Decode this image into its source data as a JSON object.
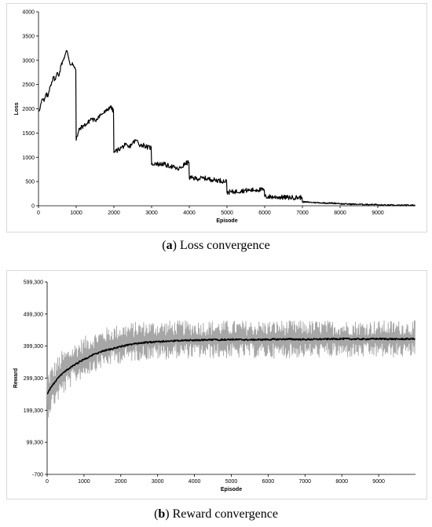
{
  "captions": {
    "a": {
      "letter": "a",
      "text": "Loss convergence"
    },
    "b": {
      "letter": "b",
      "text": "Reward convergence"
    }
  },
  "chart_data": [
    {
      "id": "loss",
      "type": "line",
      "title": "",
      "xlabel": "Episode",
      "ylabel": "Loss",
      "xlim": [
        0,
        10000
      ],
      "ylim": [
        0,
        4000
      ],
      "x_ticks": [
        "0",
        "1000",
        "2000",
        "3000",
        "4000",
        "5000",
        "6000",
        "7000",
        "8000",
        "9000"
      ],
      "y_ticks": [
        "4000",
        "3500",
        "3000",
        "2500",
        "2000",
        "1500",
        "1000",
        "500",
        "0"
      ],
      "grid": false,
      "series": [
        {
          "color": "#000000",
          "x": [
            0,
            50,
            100,
            150,
            200,
            250,
            300,
            350,
            400,
            450,
            500,
            550,
            600,
            650,
            700,
            750,
            800,
            850,
            900,
            950,
            990,
            1000,
            1050,
            1100,
            1200,
            1300,
            1400,
            1500,
            1600,
            1700,
            1800,
            1900,
            1990,
            2000,
            2100,
            2200,
            2300,
            2400,
            2500,
            2600,
            2700,
            2800,
            2900,
            2990,
            3000,
            3100,
            3200,
            3300,
            3400,
            3500,
            3600,
            3700,
            3800,
            3900,
            3990,
            4000,
            4200,
            4400,
            4600,
            4800,
            4990,
            5000,
            5200,
            5400,
            5600,
            5800,
            5990,
            6000,
            6300,
            6600,
            6990,
            7000,
            7500,
            7990,
            8000,
            8500,
            8990,
            9000,
            9500,
            9990
          ],
          "y": [
            1950,
            2050,
            2200,
            2150,
            2300,
            2250,
            2450,
            2550,
            2650,
            2600,
            2750,
            2700,
            2900,
            3000,
            3100,
            3200,
            3050,
            2900,
            2950,
            2850,
            2800,
            1350,
            1500,
            1600,
            1650,
            1700,
            1800,
            1750,
            1850,
            1900,
            1950,
            2050,
            1950,
            1100,
            1150,
            1200,
            1250,
            1200,
            1300,
            1350,
            1250,
            1250,
            1200,
            1200,
            850,
            880,
            850,
            870,
            830,
            820,
            790,
            750,
            800,
            870,
            900,
            580,
            560,
            570,
            540,
            520,
            500,
            280,
            290,
            310,
            320,
            330,
            330,
            190,
            180,
            170,
            170,
            80,
            60,
            50,
            40,
            30,
            25,
            15,
            10,
            10
          ]
        }
      ]
    },
    {
      "id": "reward",
      "type": "line",
      "title": "",
      "xlabel": "Episode",
      "ylabel": "Reward",
      "xlim": [
        0,
        10000
      ],
      "ylim": [
        -700,
        599300
      ],
      "x_ticks": [
        "0",
        "1000",
        "2000",
        "3000",
        "4000",
        "5000",
        "6000",
        "7000",
        "8000",
        "9000"
      ],
      "y_ticks": [
        "599,300",
        "499,300",
        "399,300",
        "299,300",
        "199,300",
        "99,300",
        "-700"
      ],
      "grid": false,
      "series": [
        {
          "color": "#a6a6a6",
          "x": [
            0,
            100,
            200,
            300,
            400,
            600,
            800,
            1000,
            1200,
            1500,
            1800,
            2000,
            2300,
            2600,
            3000,
            3500,
            4000,
            4500,
            5000,
            5500,
            6000,
            6500,
            7000,
            7500,
            8000,
            8500,
            9000,
            9500,
            9990
          ],
          "y_min": [
            170000,
            190000,
            210000,
            225000,
            240000,
            265000,
            285000,
            300000,
            315000,
            330000,
            340000,
            345000,
            350000,
            355000,
            355000,
            360000,
            360000,
            360000,
            360000,
            360000,
            360000,
            360000,
            362000,
            362000,
            362000,
            362000,
            362000,
            362000,
            365000
          ],
          "y_max": [
            320000,
            340000,
            355000,
            370000,
            385000,
            400000,
            415000,
            430000,
            440000,
            455000,
            465000,
            470000,
            475000,
            478000,
            480000,
            480000,
            480000,
            480000,
            480000,
            480000,
            480000,
            480000,
            480000,
            480000,
            480000,
            480000,
            480000,
            480000,
            480000
          ]
        },
        {
          "color": "#000000",
          "x": [
            0,
            100,
            200,
            300,
            400,
            600,
            800,
            1000,
            1200,
            1500,
            1800,
            2000,
            2300,
            2600,
            3000,
            3500,
            4000,
            4500,
            5000,
            5500,
            6000,
            6500,
            7000,
            7500,
            8000,
            8500,
            9000,
            9500,
            9990
          ],
          "y": [
            250000,
            270000,
            285000,
            300000,
            312000,
            330000,
            345000,
            358000,
            370000,
            383000,
            392000,
            398000,
            405000,
            410000,
            413000,
            416000,
            418000,
            419000,
            420000,
            419000,
            420000,
            421000,
            420000,
            421000,
            422000,
            421000,
            422000,
            421000,
            422000
          ]
        }
      ]
    }
  ]
}
